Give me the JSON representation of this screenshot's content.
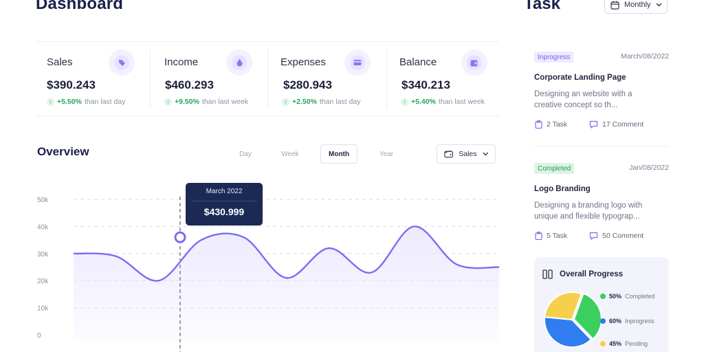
{
  "header": {
    "title": "Dashboard"
  },
  "stats": [
    {
      "label": "Sales",
      "value": "$390.243",
      "change": "+5.50%",
      "period": "than last day"
    },
    {
      "label": "Income",
      "value": "$460.293",
      "change": "+9.50%",
      "period": "than last week"
    },
    {
      "label": "Expenses",
      "value": "$280.943",
      "change": "+2.50%",
      "period": "than last day"
    },
    {
      "label": "Balance",
      "value": "$340.213",
      "change": "+5.40%",
      "period": "than last week"
    }
  ],
  "overview": {
    "title": "Overview",
    "tabs": [
      "Day",
      "Week",
      "Month",
      "Year"
    ],
    "active_tab": "Month",
    "metric_select": "Sales"
  },
  "chart_data": {
    "type": "area",
    "y_ticks": [
      "50k",
      "40k",
      "30k",
      "20k",
      "10k",
      "0"
    ],
    "ylim": [
      0,
      50000
    ],
    "series": [
      {
        "values": [
          30000,
          29000,
          20000,
          35000,
          36000,
          21000,
          32000,
          23000,
          40000,
          26000,
          25000
        ]
      }
    ],
    "highlight": {
      "label": "March 2022",
      "value": "$430.999"
    },
    "colors": {
      "line": "#7b6cf0",
      "fill": "#ece9ff",
      "tooltip": "#1b2a55"
    },
    "grid": true
  },
  "tasks": {
    "title": "Task",
    "period_select": "Monthly",
    "items": [
      {
        "status": "Inprogress",
        "date": "March/08/2022",
        "name": "Corporate Landing Page",
        "description": "Designing an website with a creative concept so th...",
        "task_count": "2 Task",
        "comment_count": "17 Comment"
      },
      {
        "status": "Completed",
        "date": "Jan/08/2022",
        "name": "Logo Branding",
        "description": "Designing a branding logo with unique and flexible typograp...",
        "task_count": "5 Task",
        "comment_count": "50 Comment"
      }
    ]
  },
  "overall_progress": {
    "title": "Overall Progress",
    "items": [
      {
        "value": "50%",
        "label": "Completed",
        "color": "#3ccf5f"
      },
      {
        "value": "60%",
        "label": "Inprogress",
        "color": "#2f7df0"
      },
      {
        "value": "45%",
        "label": "Pending",
        "color": "#f6d04d"
      }
    ]
  }
}
